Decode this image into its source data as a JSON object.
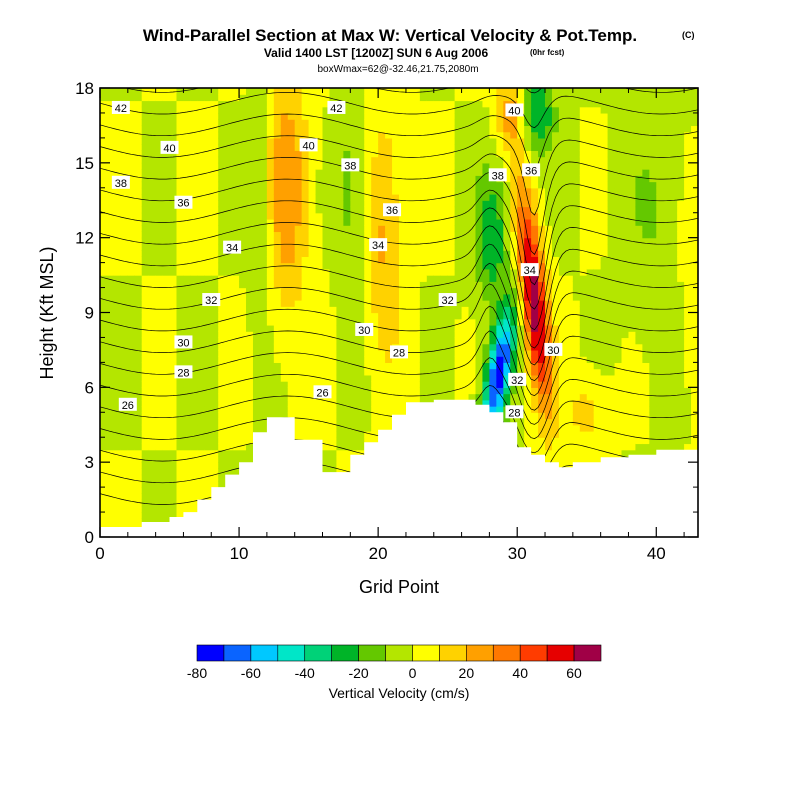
{
  "chart_data": {
    "type": "heatmap",
    "title": "Wind-Parallel Section at Max W: Vertical Velocity & Pot.Temp.",
    "title_mark": "(C)",
    "subtitle": "Valid 1400 LST [1200Z] SUN 6 Aug 2006",
    "subtitle_tag": "(0hr fcst)",
    "info": "boxWmax=62@-32.46,21.75,2080m",
    "xlabel": "Grid Point",
    "ylabel": "Height (Kft MSL)",
    "xlim": [
      0,
      43
    ],
    "ylim": [
      0,
      18
    ],
    "x_ticks": [
      0,
      10,
      20,
      30,
      40
    ],
    "y_ticks": [
      0,
      3,
      6,
      9,
      12,
      15,
      18
    ],
    "x_tick_labels": [
      "0",
      "10",
      "20",
      "30",
      "40"
    ],
    "y_tick_labels": [
      "0",
      "3",
      "6",
      "9",
      "12",
      "15",
      "18"
    ],
    "colorbar": {
      "label": "Vertical Velocity (cm/s)",
      "boundaries": [
        -80,
        -70,
        -60,
        -50,
        -40,
        -30,
        -20,
        -10,
        0,
        10,
        20,
        30,
        40,
        50,
        60,
        70
      ],
      "tick_values": [
        -80,
        -60,
        -40,
        -20,
        0,
        20,
        40,
        60
      ],
      "tick_labels": [
        "-80",
        "-60",
        "-40",
        "-20",
        "0",
        "20",
        "40",
        "60"
      ],
      "colors": [
        "#0000ff",
        "#0a64ff",
        "#00c8ff",
        "#00e6c8",
        "#00d278",
        "#00b428",
        "#64c800",
        "#b4e600",
        "#ffff00",
        "#ffd200",
        "#ffa000",
        "#ff7800",
        "#ff3c00",
        "#e60000",
        "#a00046"
      ]
    },
    "terrain_profile": [
      [
        0,
        0.4
      ],
      [
        2,
        0.4
      ],
      [
        3,
        0.6
      ],
      [
        5,
        0.8
      ],
      [
        6,
        1.0
      ],
      [
        7,
        1.5
      ],
      [
        8,
        2.0
      ],
      [
        9,
        2.5
      ],
      [
        10,
        3.0
      ],
      [
        11,
        4.2
      ],
      [
        12,
        4.8
      ],
      [
        13,
        4.8
      ],
      [
        14,
        3.9
      ],
      [
        15,
        3.9
      ],
      [
        16,
        2.6
      ],
      [
        18,
        3.3
      ],
      [
        19,
        3.8
      ],
      [
        20,
        4.3
      ],
      [
        21,
        4.9
      ],
      [
        22,
        5.4
      ],
      [
        24,
        5.5
      ],
      [
        26,
        5.5
      ],
      [
        27,
        5.3
      ],
      [
        28,
        5.0
      ],
      [
        29,
        4.6
      ],
      [
        30,
        3.6
      ],
      [
        31,
        3.3
      ],
      [
        32,
        3.0
      ],
      [
        33,
        2.8
      ],
      [
        34,
        3.0
      ],
      [
        36,
        3.2
      ],
      [
        38,
        3.3
      ],
      [
        40,
        3.5
      ],
      [
        43,
        3.5
      ]
    ],
    "theta_contours": {
      "levels": [
        24,
        25,
        26,
        27,
        28,
        29,
        30,
        31,
        32,
        33,
        34,
        35,
        36,
        37,
        38,
        39,
        40,
        41,
        42,
        43,
        44
      ],
      "labels": [
        {
          "x": 1.5,
          "y": 17.2,
          "text": "42"
        },
        {
          "x": 5.0,
          "y": 15.6,
          "text": "40"
        },
        {
          "x": 1.5,
          "y": 14.2,
          "text": "38"
        },
        {
          "x": 6.0,
          "y": 13.4,
          "text": "36"
        },
        {
          "x": 9.5,
          "y": 11.6,
          "text": "34"
        },
        {
          "x": 8.0,
          "y": 9.5,
          "text": "32"
        },
        {
          "x": 6.0,
          "y": 7.8,
          "text": "30"
        },
        {
          "x": 6.0,
          "y": 6.6,
          "text": "28"
        },
        {
          "x": 2.0,
          "y": 5.3,
          "text": "26"
        },
        {
          "x": 17.0,
          "y": 17.2,
          "text": "42"
        },
        {
          "x": 15.0,
          "y": 15.7,
          "text": "40"
        },
        {
          "x": 18.0,
          "y": 14.9,
          "text": "38"
        },
        {
          "x": 21.0,
          "y": 13.1,
          "text": "36"
        },
        {
          "x": 20.0,
          "y": 11.7,
          "text": "34"
        },
        {
          "x": 25.0,
          "y": 9.5,
          "text": "32"
        },
        {
          "x": 19.0,
          "y": 8.3,
          "text": "30"
        },
        {
          "x": 21.5,
          "y": 7.4,
          "text": "28"
        },
        {
          "x": 16.0,
          "y": 5.8,
          "text": "26"
        },
        {
          "x": 29.8,
          "y": 17.1,
          "text": "40"
        },
        {
          "x": 28.6,
          "y": 14.5,
          "text": "38"
        },
        {
          "x": 31.0,
          "y": 14.7,
          "text": "36"
        },
        {
          "x": 30.9,
          "y": 10.7,
          "text": "34"
        },
        {
          "x": 32.6,
          "y": 7.5,
          "text": "30"
        },
        {
          "x": 30.0,
          "y": 6.3,
          "text": "32"
        },
        {
          "x": 29.8,
          "y": 5.0,
          "text": "28"
        }
      ]
    }
  }
}
